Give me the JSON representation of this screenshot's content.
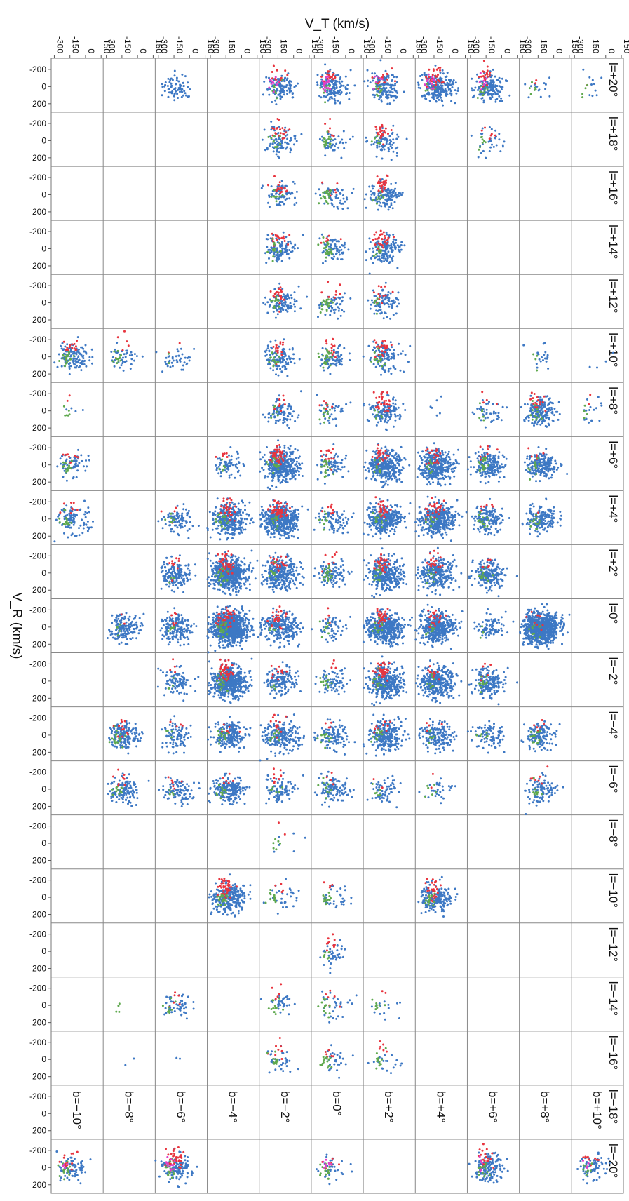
{
  "chart_data": {
    "type": "scatter",
    "xlabel": "V_T   (km/s)",
    "ylabel": "V_R   (km/s)",
    "x_ticks": [
      "-300",
      "-150",
      "0",
      "150"
    ],
    "y_ticks": [
      "-200",
      "0",
      "200"
    ],
    "xlim": [
      -330,
      170
    ],
    "ylim": [
      -330,
      300
    ],
    "l_labels": [
      "l=+20°",
      "l=+18°",
      "l=+16°",
      "l=+14°",
      "l=+12°",
      "l=+10°",
      "l=+8°",
      "l=+6°",
      "l=+4°",
      "l=+2°",
      "l=0°",
      "l=−2°",
      "l=−4°",
      "l=−6°",
      "l=−8°",
      "l=−10°",
      "l=−12°",
      "l=−14°",
      "l=−16°",
      "l=−18°",
      "l=−20°"
    ],
    "b_labels": [
      "b=−10°",
      "b=−8°",
      "b=−6°",
      "b=−4°",
      "b=−2°",
      "b=0°",
      "b=+2°",
      "b=+4°",
      "b=+6°",
      "b=+8°",
      "b=+10°"
    ],
    "series_colors": {
      "blue": "#3d78c4",
      "red": "#e8343e",
      "green": "#5fa94e",
      "magenta": "#e040c8"
    },
    "panels": [
      [
        0,
        2,
        70,
        0,
        0,
        0
      ],
      [
        0,
        4,
        110,
        12,
        8,
        10
      ],
      [
        0,
        5,
        130,
        18,
        12,
        18
      ],
      [
        0,
        6,
        140,
        16,
        10,
        6
      ],
      [
        0,
        7,
        220,
        30,
        6,
        14
      ],
      [
        0,
        8,
        160,
        20,
        10,
        8
      ],
      [
        0,
        9,
        14,
        2,
        6,
        0
      ],
      [
        0,
        10,
        10,
        1,
        4,
        0
      ],
      [
        1,
        4,
        90,
        22,
        10,
        0
      ],
      [
        1,
        5,
        40,
        6,
        18,
        0
      ],
      [
        1,
        6,
        80,
        24,
        6,
        0
      ],
      [
        1,
        8,
        30,
        6,
        8,
        0
      ],
      [
        2,
        4,
        80,
        16,
        8,
        0
      ],
      [
        2,
        5,
        50,
        6,
        20,
        0
      ],
      [
        2,
        6,
        120,
        30,
        8,
        0
      ],
      [
        3,
        4,
        110,
        18,
        14,
        0
      ],
      [
        3,
        5,
        70,
        6,
        24,
        0
      ],
      [
        3,
        6,
        140,
        30,
        8,
        0
      ],
      [
        4,
        4,
        100,
        20,
        12,
        0
      ],
      [
        4,
        5,
        50,
        8,
        22,
        0
      ],
      [
        4,
        6,
        90,
        12,
        6,
        0
      ],
      [
        5,
        0,
        120,
        14,
        22,
        0
      ],
      [
        5,
        1,
        40,
        6,
        12,
        0
      ],
      [
        5,
        2,
        40,
        2,
        2,
        0
      ],
      [
        5,
        4,
        110,
        16,
        14,
        0
      ],
      [
        5,
        5,
        70,
        14,
        24,
        0
      ],
      [
        5,
        6,
        110,
        24,
        14,
        0
      ],
      [
        5,
        9,
        20,
        0,
        4,
        0
      ],
      [
        5,
        10,
        4,
        0,
        0,
        0
      ],
      [
        6,
        0,
        4,
        2,
        6,
        0
      ],
      [
        6,
        4,
        90,
        8,
        6,
        0
      ],
      [
        6,
        5,
        40,
        6,
        12,
        0
      ],
      [
        6,
        6,
        140,
        30,
        6,
        0
      ],
      [
        6,
        7,
        6,
        0,
        0,
        0
      ],
      [
        6,
        8,
        40,
        4,
        6,
        0
      ],
      [
        6,
        9,
        170,
        16,
        12,
        0
      ],
      [
        6,
        10,
        16,
        2,
        4,
        0
      ],
      [
        7,
        0,
        60,
        8,
        12,
        0
      ],
      [
        7,
        3,
        60,
        6,
        6,
        0
      ],
      [
        7,
        4,
        380,
        50,
        14,
        0
      ],
      [
        7,
        5,
        70,
        16,
        18,
        0
      ],
      [
        7,
        6,
        340,
        24,
        8,
        0
      ],
      [
        7,
        7,
        340,
        20,
        8,
        0
      ],
      [
        7,
        8,
        180,
        8,
        16,
        0
      ],
      [
        7,
        9,
        190,
        6,
        12,
        0
      ],
      [
        8,
        0,
        100,
        8,
        16,
        0
      ],
      [
        8,
        2,
        90,
        4,
        6,
        0
      ],
      [
        8,
        3,
        320,
        30,
        16,
        0
      ],
      [
        8,
        4,
        460,
        50,
        10,
        0
      ],
      [
        8,
        5,
        80,
        8,
        10,
        0
      ],
      [
        8,
        6,
        300,
        30,
        12,
        0
      ],
      [
        8,
        7,
        380,
        26,
        8,
        0
      ],
      [
        8,
        8,
        150,
        6,
        14,
        0
      ],
      [
        8,
        9,
        150,
        2,
        12,
        0
      ],
      [
        9,
        2,
        150,
        10,
        4,
        0
      ],
      [
        9,
        3,
        620,
        40,
        16,
        0
      ],
      [
        9,
        4,
        300,
        22,
        10,
        0
      ],
      [
        9,
        5,
        90,
        8,
        18,
        0
      ],
      [
        9,
        6,
        330,
        34,
        12,
        0
      ],
      [
        9,
        7,
        280,
        20,
        8,
        0
      ],
      [
        9,
        8,
        200,
        6,
        14,
        0
      ],
      [
        10,
        1,
        150,
        2,
        4,
        0
      ],
      [
        10,
        2,
        170,
        6,
        6,
        0
      ],
      [
        10,
        3,
        860,
        40,
        20,
        0
      ],
      [
        10,
        4,
        250,
        26,
        4,
        0
      ],
      [
        10,
        5,
        60,
        4,
        8,
        0
      ],
      [
        10,
        6,
        440,
        30,
        10,
        0
      ],
      [
        10,
        7,
        380,
        20,
        8,
        0
      ],
      [
        10,
        8,
        80,
        0,
        4,
        0
      ],
      [
        10,
        9,
        820,
        8,
        10,
        0
      ],
      [
        11,
        2,
        90,
        4,
        4,
        0
      ],
      [
        11,
        3,
        520,
        40,
        16,
        0
      ],
      [
        11,
        4,
        140,
        12,
        4,
        0
      ],
      [
        11,
        5,
        70,
        4,
        12,
        0
      ],
      [
        11,
        6,
        380,
        36,
        12,
        0
      ],
      [
        11,
        7,
        330,
        14,
        8,
        0
      ],
      [
        11,
        8,
        190,
        6,
        12,
        0
      ],
      [
        12,
        1,
        160,
        12,
        20,
        0
      ],
      [
        12,
        2,
        90,
        4,
        4,
        0
      ],
      [
        12,
        3,
        200,
        6,
        14,
        0
      ],
      [
        12,
        4,
        210,
        14,
        8,
        0
      ],
      [
        12,
        5,
        110,
        4,
        12,
        0
      ],
      [
        12,
        6,
        260,
        10,
        12,
        0
      ],
      [
        12,
        7,
        150,
        4,
        6,
        0
      ],
      [
        12,
        8,
        90,
        0,
        6,
        0
      ],
      [
        12,
        9,
        130,
        6,
        14,
        0
      ],
      [
        13,
        1,
        110,
        8,
        12,
        0
      ],
      [
        13,
        2,
        90,
        6,
        4,
        0
      ],
      [
        13,
        3,
        190,
        6,
        12,
        0
      ],
      [
        13,
        4,
        90,
        8,
        6,
        0
      ],
      [
        13,
        5,
        110,
        4,
        10,
        0
      ],
      [
        13,
        6,
        60,
        2,
        6,
        0
      ],
      [
        13,
        7,
        30,
        2,
        6,
        0
      ],
      [
        13,
        9,
        90,
        8,
        10,
        0
      ],
      [
        14,
        4,
        6,
        2,
        6,
        0
      ],
      [
        15,
        3,
        260,
        40,
        22,
        0
      ],
      [
        15,
        4,
        30,
        4,
        12,
        0
      ],
      [
        15,
        5,
        30,
        4,
        14,
        0
      ],
      [
        15,
        7,
        190,
        28,
        14,
        0
      ],
      [
        16,
        5,
        40,
        10,
        6,
        0
      ],
      [
        17,
        1,
        0,
        0,
        4,
        0
      ],
      [
        17,
        2,
        50,
        6,
        8,
        0
      ],
      [
        17,
        4,
        30,
        6,
        12,
        0
      ],
      [
        17,
        5,
        30,
        6,
        12,
        0
      ],
      [
        17,
        6,
        14,
        2,
        8,
        0
      ],
      [
        18,
        1,
        2,
        0,
        0,
        0
      ],
      [
        18,
        2,
        2,
        0,
        0,
        0
      ],
      [
        18,
        4,
        30,
        8,
        12,
        0
      ],
      [
        18,
        5,
        30,
        6,
        16,
        0
      ],
      [
        18,
        6,
        20,
        6,
        12,
        0
      ],
      [
        20,
        0,
        70,
        12,
        16,
        4
      ],
      [
        20,
        2,
        120,
        40,
        20,
        14
      ],
      [
        20,
        5,
        30,
        6,
        16,
        8
      ],
      [
        20,
        8,
        140,
        20,
        14,
        6
      ],
      [
        20,
        10,
        70,
        10,
        8,
        4
      ]
    ]
  }
}
